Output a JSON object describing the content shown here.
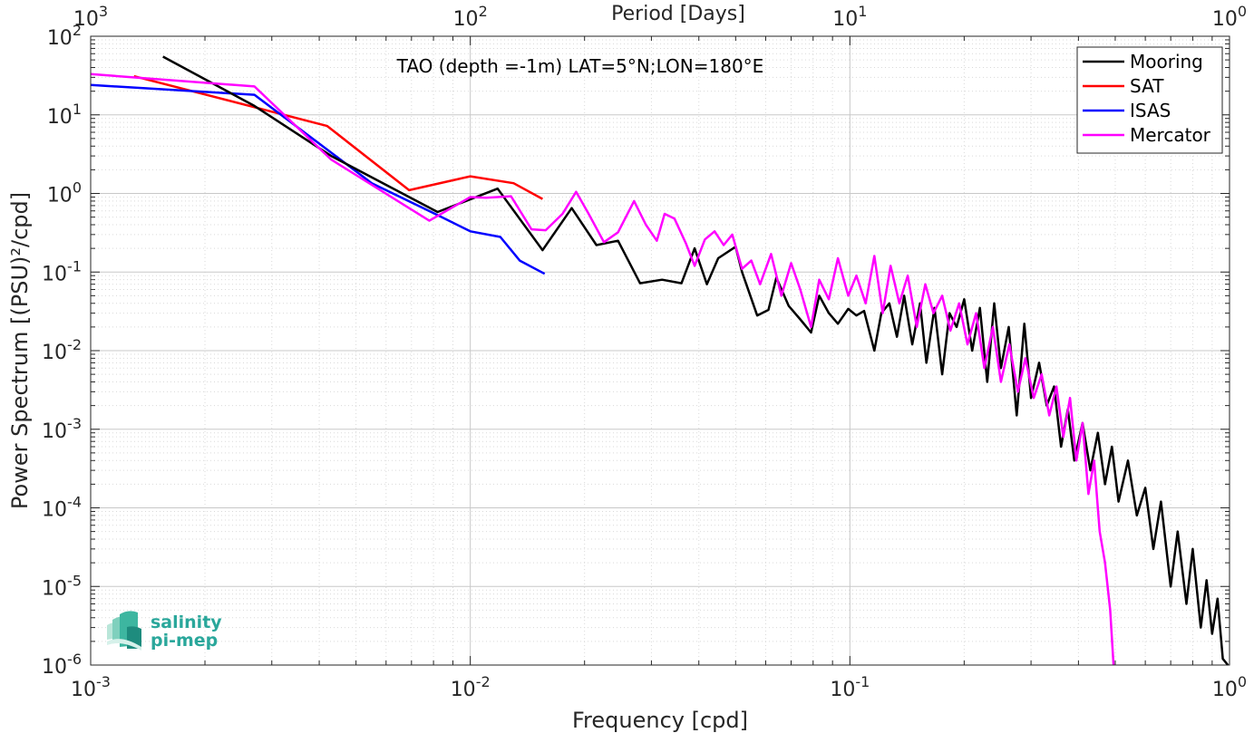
{
  "chart_data": {
    "type": "line",
    "title": "TAO (depth =-1m) LAT=5°N;LON=180°E",
    "xlabel": "Frequency [cpd]",
    "ylabel": "Power Spectrum [(PSU)²/cpd]",
    "x2label": "Period [Days]",
    "xscale": "log",
    "yscale": "log",
    "xlim": [
      0.001,
      1
    ],
    "ylim": [
      1e-06,
      100
    ],
    "grid": true,
    "legend_position": "top-right",
    "x_ticks": [
      {
        "base": "10",
        "exp": "-3"
      },
      {
        "base": "10",
        "exp": "-2"
      },
      {
        "base": "10",
        "exp": "-1"
      },
      {
        "base": "10",
        "exp": "0"
      }
    ],
    "x2_ticks": [
      {
        "base": "10",
        "exp": "3"
      },
      {
        "base": "10",
        "exp": "2"
      },
      {
        "base": "10",
        "exp": "1"
      },
      {
        "base": "10",
        "exp": "0"
      }
    ],
    "y_ticks": [
      {
        "base": "10",
        "exp": "-6"
      },
      {
        "base": "10",
        "exp": "-5"
      },
      {
        "base": "10",
        "exp": "-4"
      },
      {
        "base": "10",
        "exp": "-3"
      },
      {
        "base": "10",
        "exp": "-2"
      },
      {
        "base": "10",
        "exp": "-1"
      },
      {
        "base": "10",
        "exp": "0"
      },
      {
        "base": "10",
        "exp": "1"
      },
      {
        "base": "10",
        "exp": "2"
      }
    ],
    "series": [
      {
        "name": "Mooring",
        "color": "#000000",
        "x": [
          0.00155,
          0.0027,
          0.0043,
          0.0082,
          0.0118,
          0.0155,
          0.0185,
          0.0215,
          0.0245,
          0.028,
          0.032,
          0.036,
          0.039,
          0.042,
          0.045,
          0.05,
          0.052,
          0.057,
          0.061,
          0.064,
          0.069,
          0.074,
          0.079,
          0.083,
          0.088,
          0.093,
          0.099,
          0.104,
          0.109,
          0.116,
          0.121,
          0.127,
          0.133,
          0.139,
          0.146,
          0.153,
          0.159,
          0.167,
          0.175,
          0.183,
          0.191,
          0.2,
          0.21,
          0.22,
          0.23,
          0.24,
          0.25,
          0.262,
          0.275,
          0.288,
          0.3,
          0.315,
          0.33,
          0.345,
          0.36,
          0.375,
          0.39,
          0.41,
          0.43,
          0.45,
          0.47,
          0.49,
          0.51,
          0.54,
          0.57,
          0.6,
          0.63,
          0.66,
          0.7,
          0.73,
          0.77,
          0.8,
          0.84,
          0.87,
          0.9,
          0.93,
          0.96,
          0.99
        ],
        "y": [
          55,
          13,
          3.0,
          0.58,
          1.15,
          0.19,
          0.65,
          0.22,
          0.25,
          0.072,
          0.08,
          0.072,
          0.2,
          0.07,
          0.15,
          0.21,
          0.1,
          0.028,
          0.033,
          0.085,
          0.037,
          0.025,
          0.017,
          0.05,
          0.03,
          0.022,
          0.034,
          0.028,
          0.032,
          0.01,
          0.03,
          0.04,
          0.015,
          0.05,
          0.012,
          0.04,
          0.007,
          0.035,
          0.005,
          0.03,
          0.02,
          0.045,
          0.01,
          0.035,
          0.004,
          0.04,
          0.006,
          0.02,
          0.0015,
          0.022,
          0.0025,
          0.007,
          0.002,
          0.0035,
          0.0006,
          0.0018,
          0.0004,
          0.0012,
          0.0003,
          0.0009,
          0.0002,
          0.0006,
          0.00012,
          0.0004,
          8e-05,
          0.00018,
          3e-05,
          0.00012,
          1e-05,
          5e-05,
          6e-06,
          3e-05,
          3e-06,
          1.2e-05,
          2.5e-06,
          7e-06,
          1.2e-06,
          1e-06
        ]
      },
      {
        "name": "SAT",
        "color": "#ff0000",
        "x": [
          0.0013,
          0.0027,
          0.0042,
          0.0069,
          0.01,
          0.013,
          0.0155
        ],
        "y": [
          31,
          12.5,
          7.2,
          1.1,
          1.65,
          1.35,
          0.85
        ]
      },
      {
        "name": "ISAS",
        "color": "#0000ff",
        "x": [
          0.001,
          0.0027,
          0.0055,
          0.0082,
          0.01,
          0.012,
          0.0135,
          0.0157
        ],
        "y": [
          24,
          18,
          1.35,
          0.53,
          0.33,
          0.28,
          0.14,
          0.095
        ]
      },
      {
        "name": "Mercator",
        "color": "#ff00ff",
        "x": [
          0.001,
          0.0027,
          0.0043,
          0.0078,
          0.01,
          0.011,
          0.0128,
          0.0145,
          0.0158,
          0.0175,
          0.019,
          0.0205,
          0.0225,
          0.0245,
          0.027,
          0.029,
          0.031,
          0.0325,
          0.0345,
          0.037,
          0.039,
          0.0415,
          0.044,
          0.0465,
          0.049,
          0.052,
          0.055,
          0.058,
          0.062,
          0.066,
          0.07,
          0.074,
          0.079,
          0.083,
          0.088,
          0.093,
          0.099,
          0.104,
          0.11,
          0.116,
          0.122,
          0.128,
          0.135,
          0.142,
          0.15,
          0.158,
          0.166,
          0.175,
          0.184,
          0.194,
          0.204,
          0.215,
          0.226,
          0.238,
          0.25,
          0.263,
          0.277,
          0.29,
          0.305,
          0.32,
          0.335,
          0.35,
          0.365,
          0.38,
          0.395,
          0.41,
          0.425,
          0.44,
          0.455,
          0.47,
          0.485,
          0.495
        ],
        "y": [
          33,
          23,
          2.7,
          0.45,
          0.9,
          0.88,
          0.92,
          0.35,
          0.34,
          0.55,
          1.05,
          0.55,
          0.24,
          0.32,
          0.8,
          0.4,
          0.25,
          0.55,
          0.48,
          0.23,
          0.12,
          0.26,
          0.33,
          0.22,
          0.3,
          0.11,
          0.14,
          0.07,
          0.17,
          0.05,
          0.13,
          0.06,
          0.02,
          0.08,
          0.045,
          0.15,
          0.05,
          0.09,
          0.04,
          0.16,
          0.03,
          0.12,
          0.04,
          0.09,
          0.02,
          0.07,
          0.03,
          0.05,
          0.018,
          0.04,
          0.012,
          0.03,
          0.006,
          0.02,
          0.004,
          0.012,
          0.003,
          0.008,
          0.0025,
          0.005,
          0.0015,
          0.0035,
          0.0008,
          0.0025,
          0.0004,
          0.0012,
          0.00015,
          0.0004,
          5e-05,
          2e-05,
          5e-06,
          1e-06
        ]
      }
    ]
  },
  "logo": {
    "line1": "salinity",
    "line2": "pi-mep",
    "color": "#2aa79b"
  }
}
